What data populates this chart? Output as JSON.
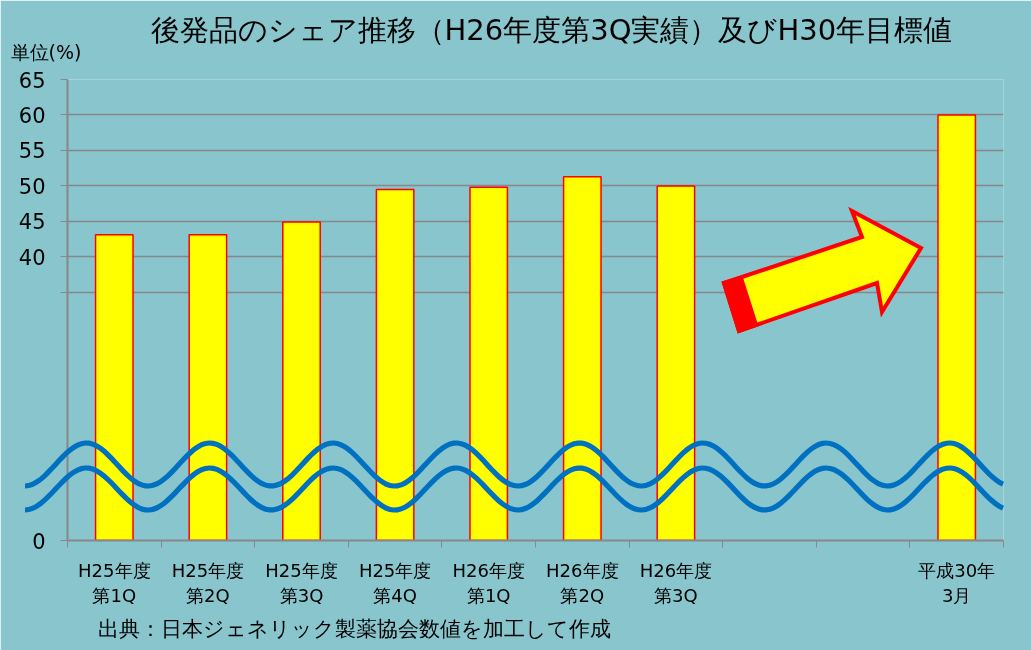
{
  "chart_data": {
    "type": "bar",
    "title": "後発品のシェア推移（H26年度第3Q実績）及びH30年目標値",
    "ylabel": "単位(%)",
    "annotations": [
      "出典：日本ジェネリック製薬協会数値を加工して作成"
    ],
    "categories": [
      "H25年度第1Q",
      "H25年度第2Q",
      "H25年度第3Q",
      "H25年度第4Q",
      "H26年度第1Q",
      "H26年度第2Q",
      "H26年度第3Q",
      null,
      null,
      "平成30年3月"
    ],
    "values": [
      43.1,
      43.1,
      44.9,
      49.5,
      49.8,
      51.3,
      50.0,
      null,
      null,
      60.0
    ],
    "color": "#ffff00",
    "ylim": [
      0,
      65
    ],
    "yticks": [
      0,
      {
        "value": 35,
        "label": null
      },
      40,
      45,
      50,
      55,
      60,
      65
    ],
    "grid": "y"
  }
}
